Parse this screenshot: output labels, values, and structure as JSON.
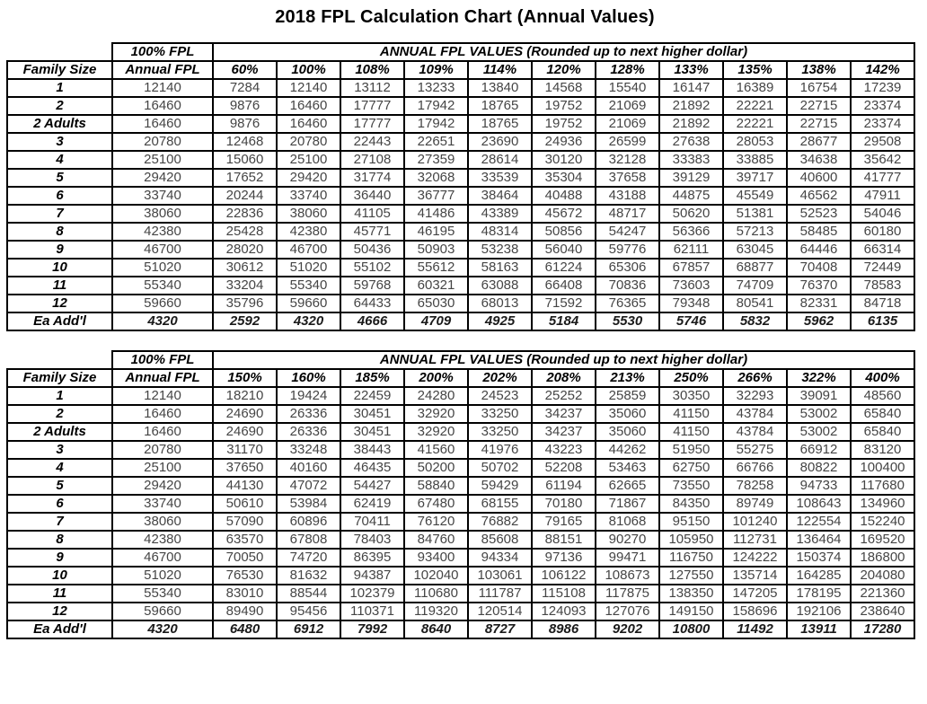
{
  "title": "2018 FPL Calculation Chart (Annual Values)",
  "colors": {
    "header_bg": "#dbe5f1",
    "grid": "#000000",
    "highlight": "#e0281e",
    "number_text": "#454545",
    "header_text": "#000000"
  },
  "tables": [
    {
      "name": "upper-fpl-table",
      "top_header": {
        "fpl_label": "100% FPL",
        "values_label": "ANNUAL FPL VALUES (Rounded up to next higher dollar)"
      },
      "columns": [
        "Family Size",
        "Annual FPL",
        "60%",
        "100%",
        "108%",
        "109%",
        "114%",
        "120%",
        "128%",
        "133%",
        "135%",
        "138%",
        "142%"
      ],
      "highlight_column": "138%",
      "rows": [
        {
          "label": "1",
          "values": [
            12140,
            7284,
            12140,
            13112,
            13233,
            13840,
            14568,
            15540,
            16147,
            16389,
            16754,
            17239
          ]
        },
        {
          "label": "2",
          "values": [
            16460,
            9876,
            16460,
            17777,
            17942,
            18765,
            19752,
            21069,
            21892,
            22221,
            22715,
            23374
          ]
        },
        {
          "label": "2 Adults",
          "values": [
            16460,
            9876,
            16460,
            17777,
            17942,
            18765,
            19752,
            21069,
            21892,
            22221,
            22715,
            23374
          ]
        },
        {
          "label": "3",
          "values": [
            20780,
            12468,
            20780,
            22443,
            22651,
            23690,
            24936,
            26599,
            27638,
            28053,
            28677,
            29508
          ]
        },
        {
          "label": "4",
          "values": [
            25100,
            15060,
            25100,
            27108,
            27359,
            28614,
            30120,
            32128,
            33383,
            33885,
            34638,
            35642
          ]
        },
        {
          "label": "5",
          "values": [
            29420,
            17652,
            29420,
            31774,
            32068,
            33539,
            35304,
            37658,
            39129,
            39717,
            40600,
            41777
          ]
        },
        {
          "label": "6",
          "values": [
            33740,
            20244,
            33740,
            36440,
            36777,
            38464,
            40488,
            43188,
            44875,
            45549,
            46562,
            47911
          ]
        },
        {
          "label": "7",
          "values": [
            38060,
            22836,
            38060,
            41105,
            41486,
            43389,
            45672,
            48717,
            50620,
            51381,
            52523,
            54046
          ]
        },
        {
          "label": "8",
          "values": [
            42380,
            25428,
            42380,
            45771,
            46195,
            48314,
            50856,
            54247,
            56366,
            57213,
            58485,
            60180
          ]
        },
        {
          "label": "9",
          "values": [
            46700,
            28020,
            46700,
            50436,
            50903,
            53238,
            56040,
            59776,
            62111,
            63045,
            64446,
            66314
          ]
        },
        {
          "label": "10",
          "values": [
            51020,
            30612,
            51020,
            55102,
            55612,
            58163,
            61224,
            65306,
            67857,
            68877,
            70408,
            72449
          ]
        },
        {
          "label": "11",
          "values": [
            55340,
            33204,
            55340,
            59768,
            60321,
            63088,
            66408,
            70836,
            73603,
            74709,
            76370,
            78583
          ]
        },
        {
          "label": "12",
          "values": [
            59660,
            35796,
            59660,
            64433,
            65030,
            68013,
            71592,
            76365,
            79348,
            80541,
            82331,
            84718
          ]
        },
        {
          "label": "Ea Add'l",
          "values": [
            4320,
            2592,
            4320,
            4666,
            4709,
            4925,
            5184,
            5530,
            5746,
            5832,
            5962,
            6135
          ]
        }
      ]
    },
    {
      "name": "lower-fpl-table",
      "top_header": {
        "fpl_label": "100% FPL",
        "values_label": "ANNUAL FPL VALUES (Rounded up to next higher dollar)"
      },
      "columns": [
        "Family Size",
        "Annual FPL",
        "150%",
        "160%",
        "185%",
        "200%",
        "202%",
        "208%",
        "213%",
        "250%",
        "266%",
        "322%",
        "400%"
      ],
      "highlight_column": "266%",
      "rows": [
        {
          "label": "1",
          "values": [
            12140,
            18210,
            19424,
            22459,
            24280,
            24523,
            25252,
            25859,
            30350,
            32293,
            39091,
            48560
          ]
        },
        {
          "label": "2",
          "values": [
            16460,
            24690,
            26336,
            30451,
            32920,
            33250,
            34237,
            35060,
            41150,
            43784,
            53002,
            65840
          ]
        },
        {
          "label": "2 Adults",
          "values": [
            16460,
            24690,
            26336,
            30451,
            32920,
            33250,
            34237,
            35060,
            41150,
            43784,
            53002,
            65840
          ]
        },
        {
          "label": "3",
          "values": [
            20780,
            31170,
            33248,
            38443,
            41560,
            41976,
            43223,
            44262,
            51950,
            55275,
            66912,
            83120
          ]
        },
        {
          "label": "4",
          "values": [
            25100,
            37650,
            40160,
            46435,
            50200,
            50702,
            52208,
            53463,
            62750,
            66766,
            80822,
            100400
          ]
        },
        {
          "label": "5",
          "values": [
            29420,
            44130,
            47072,
            54427,
            58840,
            59429,
            61194,
            62665,
            73550,
            78258,
            94733,
            117680
          ]
        },
        {
          "label": "6",
          "values": [
            33740,
            50610,
            53984,
            62419,
            67480,
            68155,
            70180,
            71867,
            84350,
            89749,
            108643,
            134960
          ]
        },
        {
          "label": "7",
          "values": [
            38060,
            57090,
            60896,
            70411,
            76120,
            76882,
            79165,
            81068,
            95150,
            101240,
            122554,
            152240
          ]
        },
        {
          "label": "8",
          "values": [
            42380,
            63570,
            67808,
            78403,
            84760,
            85608,
            88151,
            90270,
            105950,
            112731,
            136464,
            169520
          ]
        },
        {
          "label": "9",
          "values": [
            46700,
            70050,
            74720,
            86395,
            93400,
            94334,
            97136,
            99471,
            116750,
            124222,
            150374,
            186800
          ]
        },
        {
          "label": "10",
          "values": [
            51020,
            76530,
            81632,
            94387,
            102040,
            103061,
            106122,
            108673,
            127550,
            135714,
            164285,
            204080
          ]
        },
        {
          "label": "11",
          "values": [
            55340,
            83010,
            88544,
            102379,
            110680,
            111787,
            115108,
            117875,
            138350,
            147205,
            178195,
            221360
          ]
        },
        {
          "label": "12",
          "values": [
            59660,
            89490,
            95456,
            110371,
            119320,
            120514,
            124093,
            127076,
            149150,
            158696,
            192106,
            238640
          ]
        },
        {
          "label": "Ea Add'l",
          "values": [
            4320,
            6480,
            6912,
            7992,
            8640,
            8727,
            8986,
            9202,
            10800,
            11492,
            13911,
            17280
          ]
        }
      ]
    }
  ]
}
